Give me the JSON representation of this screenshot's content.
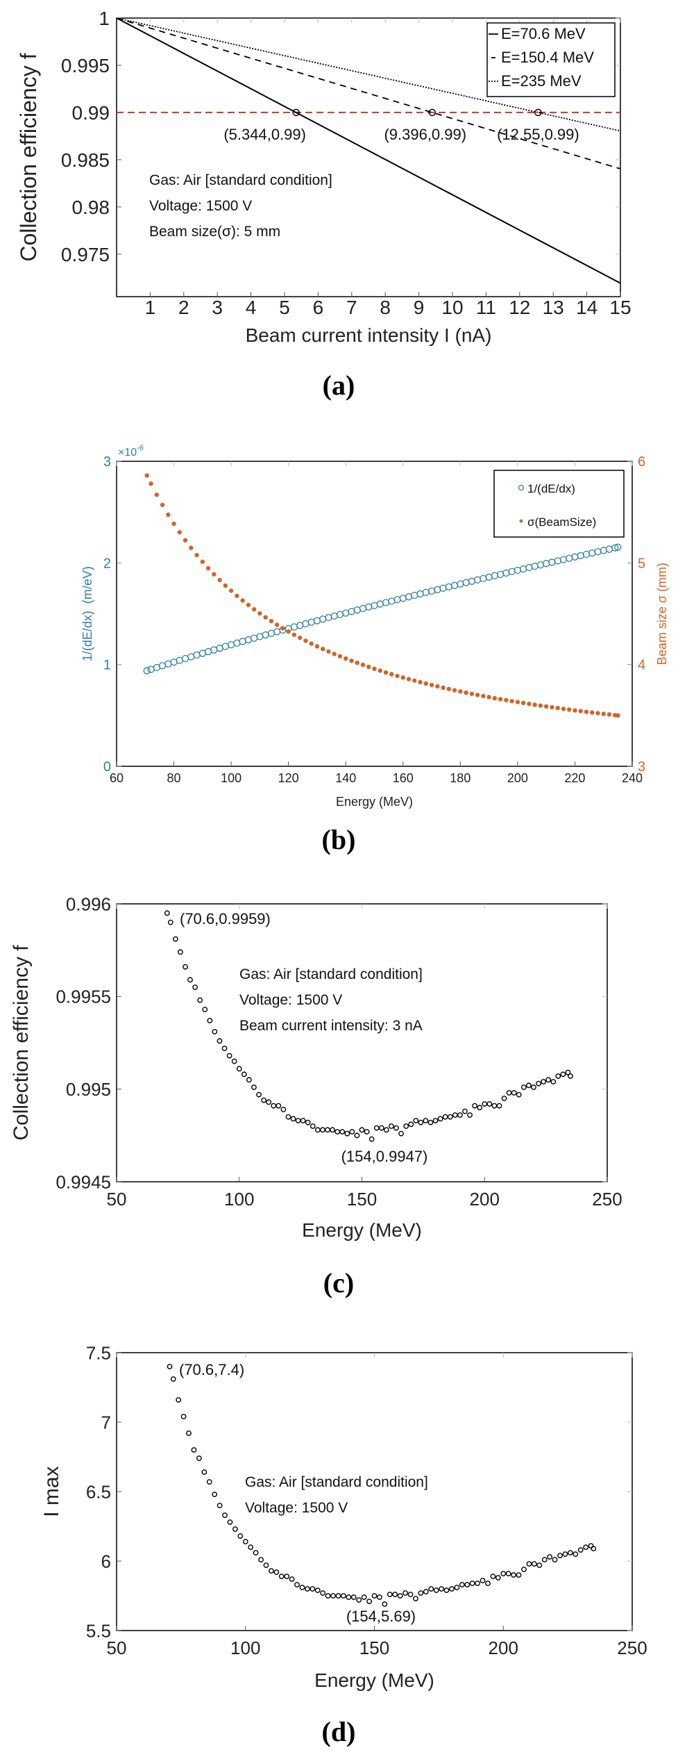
{
  "colors": {
    "axis": "#000000",
    "tick_light": "#bbbbbb",
    "ref_line": "#c0392b",
    "blue": "#2e7fa0",
    "orange": "#d0652a",
    "marker": "#000000"
  },
  "chart_data": [
    {
      "panel_label": "(a)",
      "type": "line",
      "xlabel": "Beam current intensity I (nA)",
      "ylabel": "Collection efficiency f",
      "xlim": [
        0,
        15
      ],
      "ylim": [
        0.9705,
        1
      ],
      "xticks": [
        1,
        2,
        3,
        4,
        5,
        6,
        7,
        8,
        9,
        10,
        11,
        12,
        13,
        14,
        15
      ],
      "xtick_labels": [
        "1",
        "2",
        "3",
        "4",
        "5",
        "6",
        "7",
        "8",
        "9",
        "10",
        "11",
        "12",
        "13",
        "14",
        "15"
      ],
      "yticks": [
        0.975,
        0.98,
        0.985,
        0.99,
        0.995,
        1
      ],
      "ytick_labels": [
        "0.975",
        "0.98",
        "0.985",
        "0.99",
        "0.995",
        "1"
      ],
      "grid": false,
      "legend_position": "top-right",
      "series": [
        {
          "name": "E=70.6 MeV",
          "style": "solid",
          "x": [
            0,
            15
          ],
          "values": [
            1,
            0.97193
          ]
        },
        {
          "name": "E=150.4 MeV",
          "style": "dashed",
          "x": [
            0,
            15
          ],
          "values": [
            1,
            0.98404
          ]
        },
        {
          "name": "E=235 MeV",
          "style": "dotted",
          "x": [
            0,
            15
          ],
          "values": [
            1,
            0.98805
          ]
        }
      ],
      "reference_line": {
        "y": 0.99,
        "style": "dashed",
        "color": "#c0392b"
      },
      "marked_points": [
        {
          "x": 5.344,
          "y": 0.99,
          "label": "(5.344,0.99)"
        },
        {
          "x": 9.396,
          "y": 0.99,
          "label": "(9.396,0.99)"
        },
        {
          "x": 12.55,
          "y": 0.99,
          "label": "(12.55,0.99)"
        }
      ],
      "annotations": [
        "Gas: Air [standard condition]",
        "Voltage: 1500 V",
        "Beam size(σ): 5 mm"
      ]
    },
    {
      "panel_label": "(b)",
      "type": "scatter",
      "xlabel": "Energy (MeV)",
      "ylabel_left": "1/(dE/dx)  (m/eV)",
      "ylabel_right": "Beam size σ (mm)",
      "y_left_multiplier": {
        "base": "×10",
        "exp": "-6"
      },
      "xlim": [
        60,
        240
      ],
      "ylim_left": [
        0,
        3
      ],
      "ylim_right": [
        3,
        6
      ],
      "xticks": [
        60,
        80,
        100,
        120,
        140,
        160,
        180,
        200,
        220,
        240
      ],
      "xtick_labels": [
        "60",
        "80",
        "100",
        "120",
        "140",
        "160",
        "180",
        "200",
        "220",
        "240"
      ],
      "yticks_left": [
        0,
        1,
        2,
        3
      ],
      "ytick_labels_left": [
        "0",
        "1",
        "2",
        "3"
      ],
      "yticks_right": [
        3,
        4,
        5,
        6
      ],
      "ytick_labels_right": [
        "3",
        "4",
        "5",
        "6"
      ],
      "grid": false,
      "legend_position": "top-right",
      "x": [
        70.6,
        72,
        74,
        76,
        78,
        80,
        82,
        84,
        86,
        88,
        90,
        92,
        94,
        96,
        98,
        100,
        102,
        104,
        106,
        108,
        110,
        112,
        114,
        116,
        118,
        120,
        122,
        124,
        126,
        128,
        130,
        132,
        134,
        136,
        138,
        140,
        142,
        144,
        146,
        148,
        150,
        152,
        154,
        156,
        158,
        160,
        162,
        164,
        166,
        168,
        170,
        172,
        174,
        176,
        178,
        180,
        182,
        184,
        186,
        188,
        190,
        192,
        194,
        196,
        198,
        200,
        202,
        204,
        206,
        208,
        210,
        212,
        214,
        216,
        218,
        220,
        222,
        224,
        226,
        228,
        230,
        232,
        234,
        235
      ],
      "series": [
        {
          "name": "1/(dE/dx)",
          "axis": "left",
          "marker": "open-circle",
          "color": "#2e7fa0",
          "values": [
            0.94,
            0.953,
            0.971,
            0.989,
            1.007,
            1.025,
            1.042,
            1.06,
            1.077,
            1.094,
            1.111,
            1.128,
            1.145,
            1.162,
            1.179,
            1.195,
            1.212,
            1.228,
            1.244,
            1.26,
            1.276,
            1.292,
            1.308,
            1.324,
            1.34,
            1.355,
            1.371,
            1.386,
            1.402,
            1.417,
            1.432,
            1.448,
            1.463,
            1.478,
            1.493,
            1.507,
            1.522,
            1.537,
            1.552,
            1.567,
            1.581,
            1.596,
            1.61,
            1.624,
            1.639,
            1.653,
            1.667,
            1.681,
            1.696,
            1.71,
            1.724,
            1.738,
            1.752,
            1.765,
            1.779,
            1.793,
            1.807,
            1.82,
            1.834,
            1.847,
            1.861,
            1.875,
            1.888,
            1.901,
            1.915,
            1.928,
            1.941,
            1.955,
            1.968,
            1.981,
            1.994,
            2.007,
            2.02,
            2.033,
            2.046,
            2.059,
            2.072,
            2.085,
            2.098,
            2.111,
            2.123,
            2.136,
            2.149,
            2.155
          ]
        },
        {
          "name": "σ(BeamSize)",
          "axis": "right",
          "marker": "asterisk",
          "color": "#d0652a",
          "values": [
            5.86,
            5.78,
            5.671,
            5.571,
            5.475,
            5.386,
            5.302,
            5.223,
            5.149,
            5.078,
            5.012,
            4.948,
            4.889,
            4.832,
            4.778,
            4.727,
            4.677,
            4.631,
            4.587,
            4.544,
            4.504,
            4.465,
            4.428,
            4.392,
            4.358,
            4.325,
            4.294,
            4.264,
            4.235,
            4.207,
            4.18,
            4.154,
            4.129,
            4.105,
            4.082,
            4.06,
            4.038,
            4.018,
            3.998,
            3.978,
            3.959,
            3.941,
            3.923,
            3.906,
            3.889,
            3.873,
            3.858,
            3.843,
            3.828,
            3.814,
            3.8,
            3.787,
            3.773,
            3.761,
            3.748,
            3.736,
            3.724,
            3.713,
            3.702,
            3.691,
            3.681,
            3.67,
            3.66,
            3.651,
            3.641,
            3.632,
            3.623,
            3.614,
            3.605,
            3.597,
            3.589,
            3.581,
            3.573,
            3.565,
            3.558,
            3.55,
            3.543,
            3.536,
            3.529,
            3.523,
            3.516,
            3.51,
            3.503,
            3.5
          ]
        }
      ]
    },
    {
      "panel_label": "(c)",
      "type": "scatter",
      "xlabel": "Energy (MeV)",
      "ylabel": "Collection efficiency f",
      "xlim": [
        50,
        250
      ],
      "ylim": [
        0.9945,
        0.996
      ],
      "xticks": [
        50,
        100,
        150,
        200,
        250
      ],
      "xtick_labels": [
        "50",
        "100",
        "150",
        "200",
        "250"
      ],
      "yticks": [
        0.9945,
        0.995,
        0.9955,
        0.996
      ],
      "ytick_labels": [
        "0.9945",
        "0.995",
        "0.9955",
        "0.996"
      ],
      "grid": false,
      "x": [
        70.6,
        72,
        74,
        76,
        78,
        80,
        82,
        84,
        86,
        88,
        90,
        92,
        94,
        96,
        98,
        100,
        102,
        104,
        106,
        108,
        110,
        112,
        114,
        116,
        118,
        120,
        122,
        124,
        126,
        128,
        130,
        132,
        134,
        136,
        138,
        140,
        142,
        144,
        146,
        148,
        150,
        152,
        154,
        156,
        158,
        160,
        162,
        164,
        166,
        168,
        170,
        172,
        174,
        176,
        178,
        180,
        182,
        184,
        186,
        188,
        190,
        192,
        194,
        196,
        198,
        200,
        202,
        204,
        206,
        208,
        210,
        212,
        214,
        216,
        218,
        220,
        222,
        224,
        226,
        228,
        230,
        232,
        234,
        235
      ],
      "series": [
        {
          "marker": "open-circle",
          "color": "#000000",
          "values": [
            0.99595,
            0.9959,
            0.99581,
            0.99574,
            0.99566,
            0.99559,
            0.99555,
            0.99548,
            0.99543,
            0.99537,
            0.99531,
            0.99526,
            0.99522,
            0.99518,
            0.99515,
            0.99511,
            0.99508,
            0.99505,
            0.99501,
            0.99497,
            0.99494,
            0.99493,
            0.99491,
            0.99491,
            0.99489,
            0.99485,
            0.99484,
            0.99483,
            0.99483,
            0.99482,
            0.9948,
            0.99478,
            0.99478,
            0.99478,
            0.99478,
            0.99477,
            0.99477,
            0.99476,
            0.99477,
            0.99475,
            0.99478,
            0.99477,
            0.99473,
            0.99479,
            0.99479,
            0.99478,
            0.9948,
            0.99479,
            0.99476,
            0.9948,
            0.99481,
            0.99483,
            0.99482,
            0.99483,
            0.99482,
            0.99483,
            0.99484,
            0.99485,
            0.99485,
            0.99486,
            0.99486,
            0.99488,
            0.99486,
            0.99491,
            0.9949,
            0.99492,
            0.99492,
            0.99491,
            0.99491,
            0.99495,
            0.99498,
            0.99498,
            0.99497,
            0.99501,
            0.99502,
            0.99501,
            0.99503,
            0.99504,
            0.99505,
            0.99504,
            0.99507,
            0.99508,
            0.99509,
            0.99507
          ]
        }
      ],
      "marked_points": [
        {
          "x": 70.6,
          "y": 0.9959,
          "label": "(70.6,0.9959)"
        },
        {
          "x": 154,
          "y": 0.9947,
          "label": "(154,0.9947)"
        }
      ],
      "annotations": [
        "Gas: Air [standard condition]",
        "Voltage: 1500 V",
        "Beam current intensity: 3 nA"
      ]
    },
    {
      "panel_label": "(d)",
      "type": "scatter",
      "xlabel": "Energy (MeV)",
      "ylabel": "I max",
      "xlim": [
        50,
        250
      ],
      "ylim": [
        5.5,
        7.5
      ],
      "xticks": [
        50,
        100,
        150,
        200,
        250
      ],
      "xtick_labels": [
        "50",
        "100",
        "150",
        "200",
        "250"
      ],
      "yticks": [
        5.5,
        6,
        6.5,
        7,
        7.5
      ],
      "ytick_labels": [
        "5.5",
        "6",
        "6.5",
        "7",
        "7.5"
      ],
      "grid": false,
      "x": [
        70.6,
        72,
        74,
        76,
        78,
        80,
        82,
        84,
        86,
        88,
        90,
        92,
        94,
        96,
        98,
        100,
        102,
        104,
        106,
        108,
        110,
        112,
        114,
        116,
        118,
        120,
        122,
        124,
        126,
        128,
        130,
        132,
        134,
        136,
        138,
        140,
        142,
        144,
        146,
        148,
        150,
        152,
        154,
        156,
        158,
        160,
        162,
        164,
        166,
        168,
        170,
        172,
        174,
        176,
        178,
        180,
        182,
        184,
        186,
        188,
        190,
        192,
        194,
        196,
        198,
        200,
        202,
        204,
        206,
        208,
        210,
        212,
        214,
        216,
        218,
        220,
        222,
        224,
        226,
        228,
        230,
        232,
        234,
        235
      ],
      "series": [
        {
          "marker": "open-circle",
          "color": "#000000",
          "values": [
            7.4,
            7.31,
            7.16,
            7.04,
            6.92,
            6.8,
            6.74,
            6.64,
            6.57,
            6.48,
            6.4,
            6.33,
            6.28,
            6.23,
            6.18,
            6.14,
            6.1,
            6.06,
            6.01,
            5.97,
            5.93,
            5.92,
            5.89,
            5.89,
            5.87,
            5.83,
            5.81,
            5.8,
            5.8,
            5.79,
            5.77,
            5.75,
            5.75,
            5.75,
            5.75,
            5.74,
            5.74,
            5.72,
            5.74,
            5.71,
            5.75,
            5.74,
            5.69,
            5.76,
            5.76,
            5.75,
            5.77,
            5.76,
            5.73,
            5.77,
            5.78,
            5.8,
            5.79,
            5.8,
            5.79,
            5.8,
            5.81,
            5.83,
            5.83,
            5.84,
            5.84,
            5.86,
            5.84,
            5.89,
            5.88,
            5.91,
            5.91,
            5.9,
            5.9,
            5.94,
            5.98,
            5.98,
            5.97,
            6.01,
            6.03,
            6.01,
            6.04,
            6.05,
            6.06,
            6.05,
            6.08,
            6.1,
            6.11,
            6.09
          ]
        }
      ],
      "marked_points": [
        {
          "x": 70.6,
          "y": 7.4,
          "label": "(70.6,7.4)"
        },
        {
          "x": 154,
          "y": 5.69,
          "label": "(154,5.69)"
        }
      ],
      "annotations": [
        "Gas: Air [standard condition]",
        "Voltage: 1500 V"
      ]
    }
  ]
}
